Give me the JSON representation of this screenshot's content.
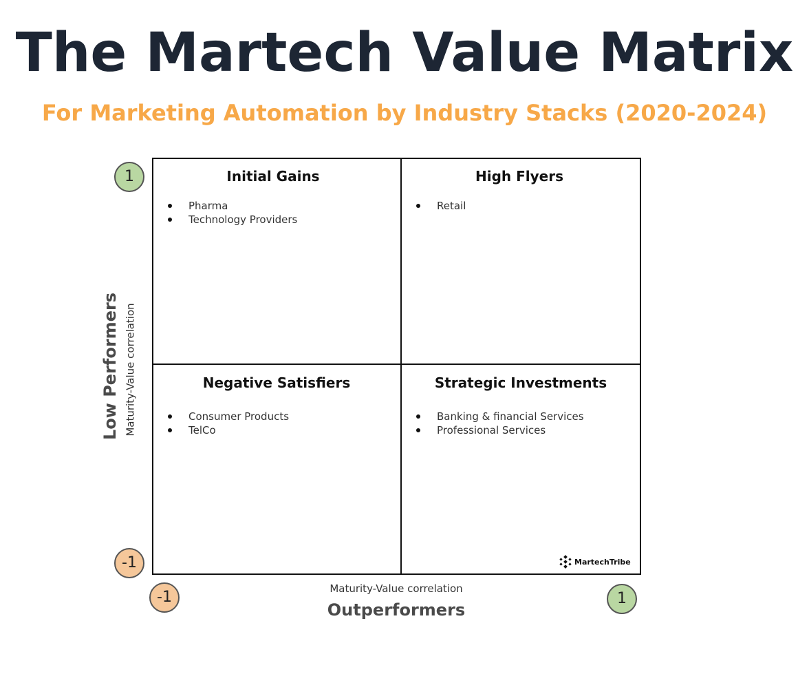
{
  "header": {
    "title": "The Martech Value Matrix",
    "subtitle": "For Marketing Automation by Industry Stacks (2020-2024)"
  },
  "colors": {
    "title": "#1d2634",
    "subtitle": "#f7a848",
    "badge_positive": "#b9d7a2",
    "badge_negative": "#f5c79a"
  },
  "axes": {
    "y": {
      "title": "Low Performers",
      "label": "Maturity-Value correlation",
      "max_label": "1",
      "min_label": "-1"
    },
    "x": {
      "title": "Outperformers",
      "label": "Maturity-Value correlation",
      "min_label": "-1",
      "max_label": "1"
    }
  },
  "quadrants": {
    "top_left": {
      "title": "Initial Gains",
      "items": [
        "Pharma",
        "Technology Providers"
      ]
    },
    "top_right": {
      "title": "High Flyers",
      "items": [
        "Retail"
      ]
    },
    "bottom_left": {
      "title": "Negative Satisfiers",
      "items": [
        "Consumer Products",
        "TelCo"
      ]
    },
    "bottom_right": {
      "title": "Strategic Investments",
      "items": [
        "Banking & financial Services",
        "Professional Services"
      ]
    }
  },
  "branding": {
    "logo_text": "MartechTribe",
    "logo_icon": "martechtribe-logo-icon"
  }
}
